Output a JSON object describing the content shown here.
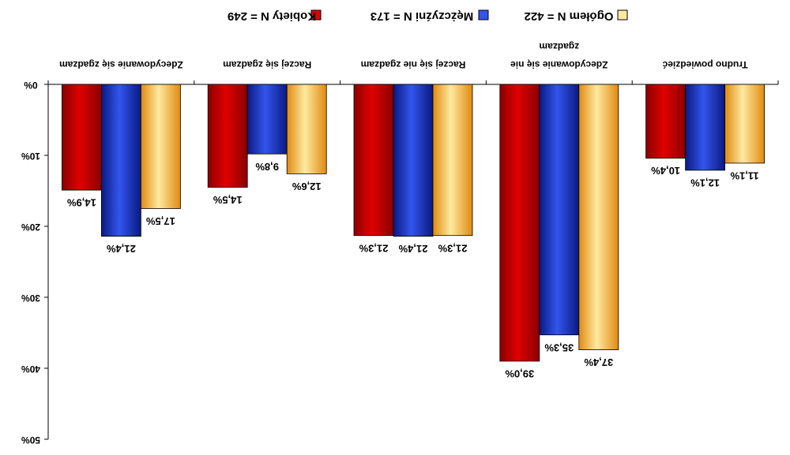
{
  "chart_data": {
    "type": "bar",
    "orientation": "vertical-down",
    "categories": [
      [
        "Zdecydowanie się zgadzam"
      ],
      [
        "Raczej się zgadzam"
      ],
      [
        "Raczej się nie zgadzam"
      ],
      [
        "Zdecydowanie się nie",
        "zgadzam"
      ],
      [
        "Trudno powiedzieć"
      ]
    ],
    "series": [
      {
        "name": "Kobiety N = 249",
        "color": "#e00000",
        "gradient_dark": "#8a0000",
        "values": [
          14.9,
          14.5,
          21.3,
          39.0,
          10.4
        ],
        "labels": [
          "14,9%",
          "14,5%",
          "21,3%",
          "39,0%",
          "10,4%"
        ]
      },
      {
        "name": "Mężczyźni N = 173",
        "color": "#3355ee",
        "gradient_dark": "#0a1a80",
        "values": [
          21.4,
          9.8,
          21.4,
          35.3,
          12.1
        ],
        "labels": [
          "21,4%",
          "9,8%",
          "21,4%",
          "35,3%",
          "12,1%"
        ]
      },
      {
        "name": "Ogółem N = 422",
        "color": "#ffe9a0",
        "gradient_dark": "#e08a10",
        "values": [
          17.5,
          12.6,
          21.3,
          37.4,
          11.1
        ],
        "labels": [
          "17,5%",
          "12,6%",
          "21,3%",
          "37,4%",
          "11,1%"
        ]
      }
    ],
    "ylim": [
      0,
      50
    ],
    "yticks": [
      0,
      10,
      20,
      30,
      40,
      50
    ],
    "ytick_labels": [
      "0%",
      "10%",
      "20%",
      "30%",
      "40%",
      "50%"
    ],
    "legend_position": "top-right",
    "title": "",
    "xlabel": "",
    "ylabel": "",
    "grid": false,
    "rendering_note": "image rotated 180 degrees"
  }
}
